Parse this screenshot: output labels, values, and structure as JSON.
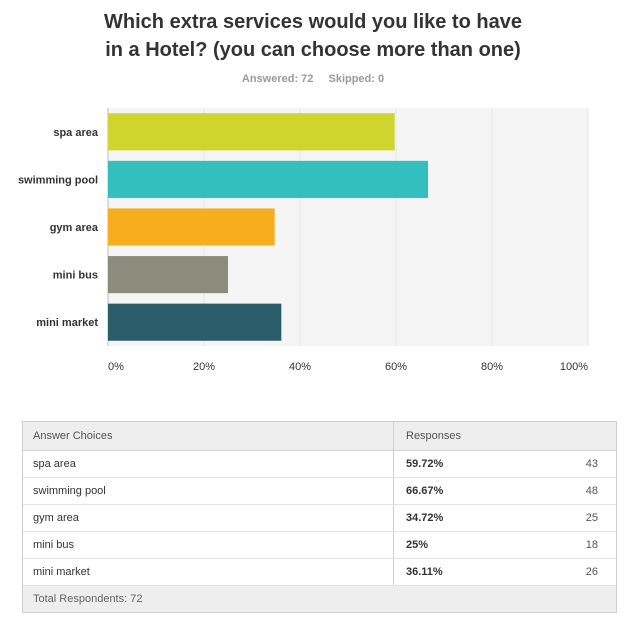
{
  "question": {
    "line1": "Which extra services would you like to have",
    "line2": "in a Hotel? (you can choose more than one)"
  },
  "stats": {
    "answered": "Answered: 72",
    "skipped": "Skipped: 0"
  },
  "chart_data": {
    "type": "bar",
    "orientation": "horizontal",
    "categories": [
      "spa area",
      "swimming pool",
      "gym area",
      "mini bus",
      "mini market"
    ],
    "values": [
      59.72,
      66.67,
      34.72,
      25,
      36.11
    ],
    "colors": [
      "#d0d52d",
      "#33bfbe",
      "#f7ae1d",
      "#8c8c7c",
      "#2b5e6a"
    ],
    "xlim": [
      0,
      100
    ],
    "xticks": [
      "0%",
      "20%",
      "40%",
      "60%",
      "80%",
      "100%"
    ],
    "grid": true,
    "grid_color": "#e6e6e6",
    "plot_background": "#f5f5f5"
  },
  "table": {
    "header_choice": "Answer Choices",
    "header_responses": "Responses",
    "rows": [
      {
        "choice": "spa area",
        "percent": "59.72%",
        "count": "43"
      },
      {
        "choice": "swimming pool",
        "percent": "66.67%",
        "count": "48"
      },
      {
        "choice": "gym area",
        "percent": "34.72%",
        "count": "25"
      },
      {
        "choice": "mini bus",
        "percent": "25%",
        "count": "18"
      },
      {
        "choice": "mini market",
        "percent": "36.11%",
        "count": "26"
      }
    ],
    "footer": "Total Respondents: 72"
  }
}
